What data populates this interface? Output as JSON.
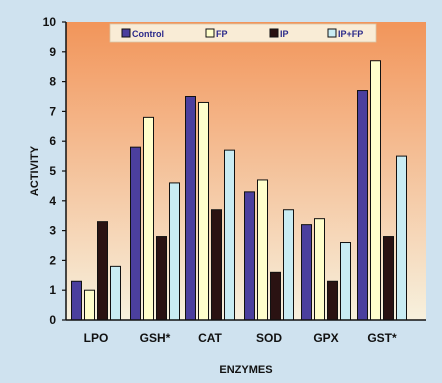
{
  "chart_data": {
    "type": "bar",
    "xlabel": "ENZYMES",
    "ylabel": "ACTIVITY",
    "ylim": [
      0,
      10
    ],
    "yticks": [
      "0",
      "1",
      "2",
      "3",
      "4",
      "5",
      "6",
      "7",
      "8",
      "9",
      "10"
    ],
    "categories": [
      "LPO",
      "GSH*",
      "CAT",
      "SOD",
      "GPX",
      "GST*"
    ],
    "legend_position": "top",
    "grid": false,
    "series": [
      {
        "name": "Control",
        "color": "#4b3f9e",
        "values": [
          1.3,
          5.8,
          7.5,
          4.3,
          3.2,
          7.7
        ]
      },
      {
        "name": "FP",
        "color": "#ffffcc",
        "values": [
          1.0,
          6.8,
          7.3,
          4.7,
          3.4,
          8.7
        ]
      },
      {
        "name": "IP",
        "color": "#2a1212",
        "values": [
          3.3,
          2.8,
          3.7,
          1.6,
          1.3,
          2.8
        ]
      },
      {
        "name": "IP+FP",
        "color": "#c9ecf3",
        "values": [
          1.8,
          4.6,
          5.7,
          3.7,
          2.6,
          5.5
        ]
      }
    ],
    "colors": {
      "plot_top": "#f2955a",
      "plot_bottom": "#f7f1de",
      "figure_background": "#cfe2ef",
      "axis": "#111111",
      "legend_box": "#f9ecd6"
    }
  }
}
